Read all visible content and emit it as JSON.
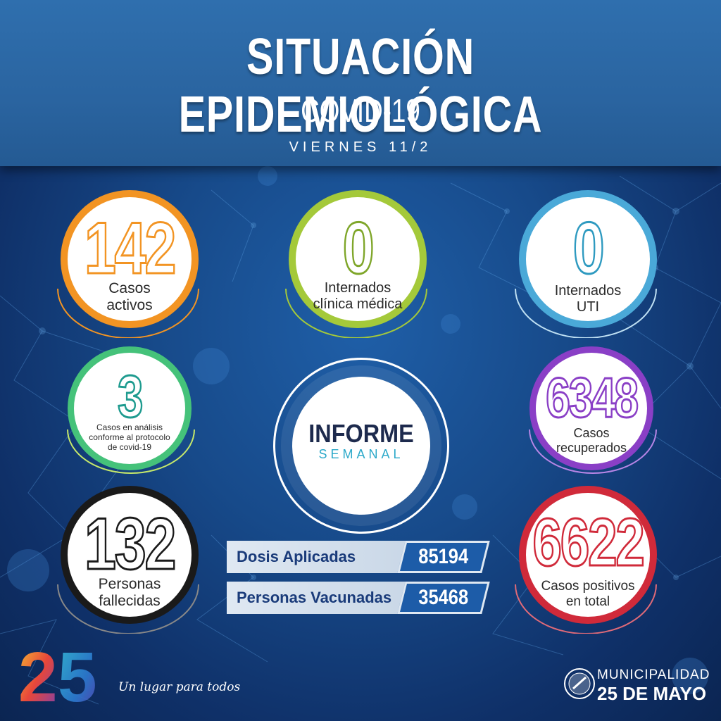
{
  "header": {
    "title": "SITUACIÓN EPIDEMIOLÓGICA",
    "subtitle": "COVID-19",
    "date": "VIERNES 11/2"
  },
  "stats": {
    "casos_activos": {
      "value": "142",
      "label_1": "Casos",
      "label_2": "activos",
      "color": "#f29423"
    },
    "internados_clinica": {
      "value": "0",
      "label_1": "Internados",
      "label_2": "clínica médica",
      "color": "#a4c93a"
    },
    "internados_uti": {
      "value": "0",
      "label_1": "Internados",
      "label_2": "UTI",
      "color": "#4aa9d8"
    },
    "casos_analisis": {
      "value": "3",
      "label_1": "Casos en análisis",
      "label_2": "conforme al protocolo",
      "label_3": "de covid-19",
      "color": "#45c27a"
    },
    "casos_recuperados": {
      "value": "6348",
      "label_1": "Casos",
      "label_2": "recuperados",
      "color": "#8a3fc6"
    },
    "personas_fallecidas": {
      "value": "132",
      "label_1": "Personas",
      "label_2": "fallecidas",
      "color": "#1a1a1a"
    },
    "casos_positivos": {
      "value": "6622",
      "label_1": "Casos positivos",
      "label_2": "en total",
      "color": "#d02a3a"
    }
  },
  "informe": {
    "line1": "INFORME",
    "line2": "SEMANAL"
  },
  "vacunacion": {
    "dosis_label": "Dosis Aplicadas",
    "dosis_value": "85194",
    "personas_label": "Personas Vacunadas",
    "personas_value": "35468"
  },
  "footer": {
    "logo_number": "25",
    "tagline": "Un lugar para todos",
    "muni_line1": "MUNICIPALIDAD",
    "muni_line2": "25 DE MAYO"
  }
}
